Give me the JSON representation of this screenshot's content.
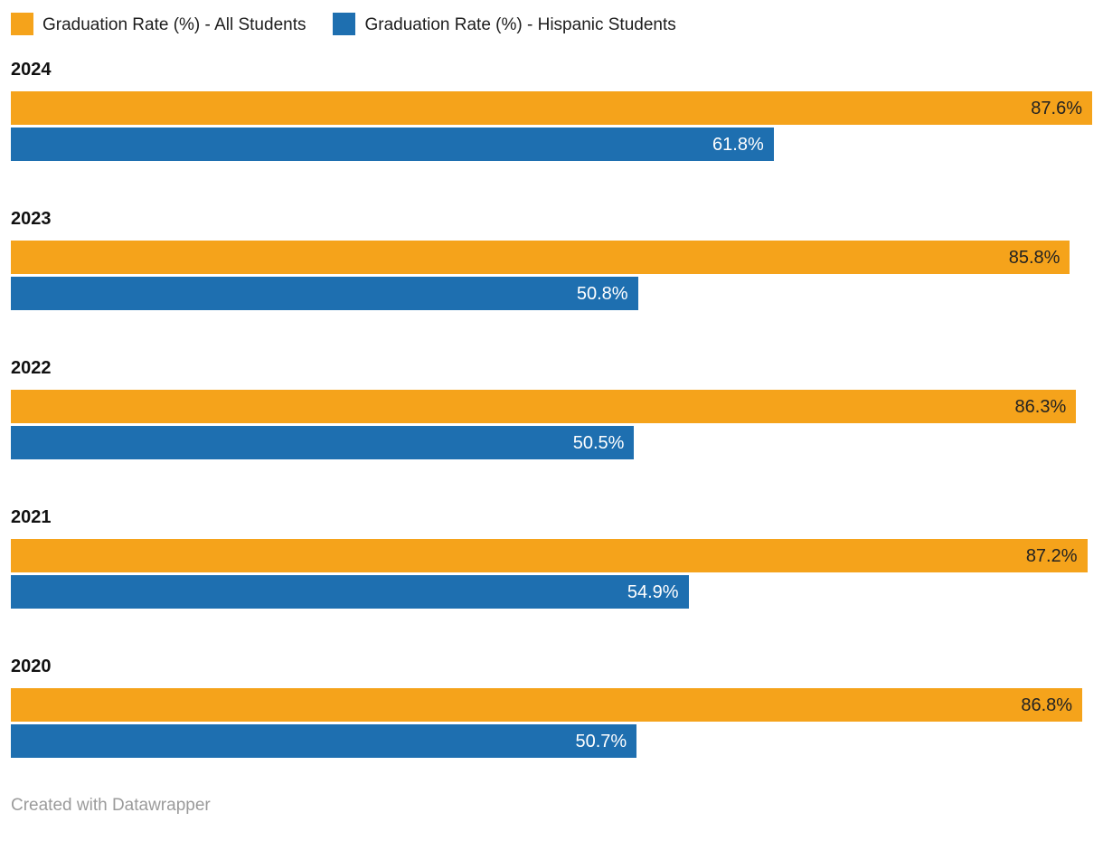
{
  "legend": {
    "items": [
      {
        "label": "Graduation Rate (%) - All Students",
        "color": "#F5A31B"
      },
      {
        "label": "Graduation Rate (%) - Hispanic Students",
        "color": "#1E6FB0"
      }
    ]
  },
  "chart_data": {
    "type": "bar",
    "orientation": "horizontal",
    "title": "",
    "categories": [
      "2024",
      "2023",
      "2022",
      "2021",
      "2020"
    ],
    "series": [
      {
        "name": "Graduation Rate (%) - All Students",
        "color": "#F5A31B",
        "label_color": "#222222",
        "values": [
          87.6,
          85.8,
          86.3,
          87.2,
          86.8
        ]
      },
      {
        "name": "Graduation Rate (%) - Hispanic Students",
        "color": "#1E6FB0",
        "label_color": "#ffffff",
        "values": [
          61.8,
          50.8,
          50.5,
          54.9,
          50.7
        ]
      }
    ],
    "value_suffix": "%",
    "value_decimals": 1,
    "xmax": 87.6,
    "grid": false,
    "legend_position": "top"
  },
  "footer": {
    "credit": "Created with Datawrapper"
  }
}
